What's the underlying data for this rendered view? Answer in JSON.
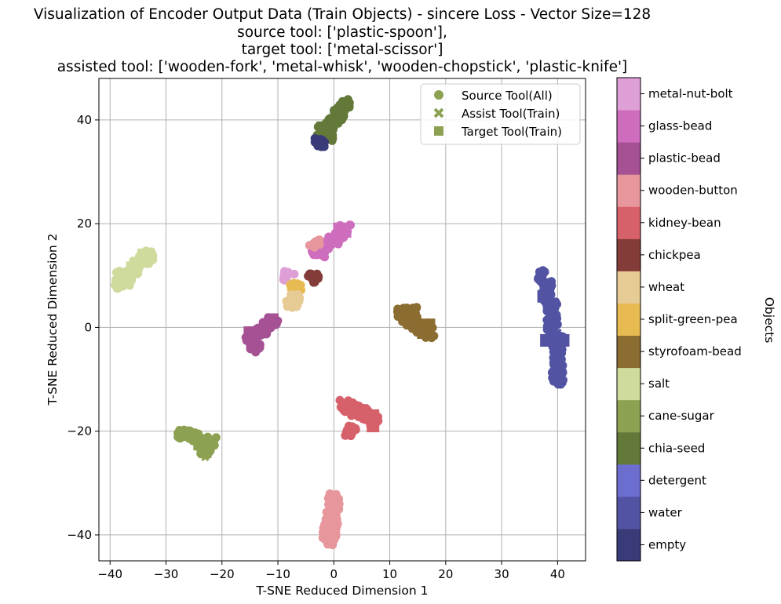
{
  "chart_data": {
    "type": "scatter",
    "title_lines": [
      "Visualization of Encoder Output Data (Train Objects) - sincere Loss - Vector Size=128",
      "source tool: ['plastic-spoon'],",
      "target tool: ['metal-scissor']",
      "assisted tool: ['wooden-fork', 'metal-whisk', 'wooden-chopstick', 'plastic-knife']"
    ],
    "xlabel": "T-SNE Reduced Dimension 1",
    "ylabel": "T-SNE Reduced Dimension 2",
    "xlim": [
      -42,
      45
    ],
    "ylim": [
      -45,
      48
    ],
    "xticks": [
      -40,
      -30,
      -20,
      -10,
      0,
      10,
      20,
      30,
      40
    ],
    "yticks": [
      -40,
      -20,
      0,
      20,
      40
    ],
    "grid": true,
    "legend_position": "top-right",
    "legend": [
      {
        "label": "Source Tool(All)",
        "marker": "circle"
      },
      {
        "label": "Assist Tool(Train)",
        "marker": "x"
      },
      {
        "label": "Target Tool(Train)",
        "marker": "square"
      }
    ],
    "legend_marker_color": "#8ca252",
    "colorbar": {
      "label": "Objects",
      "categories": [
        "empty",
        "water",
        "detergent",
        "chia-seed",
        "cane-sugar",
        "salt",
        "styrofoam-bead",
        "split-green-pea",
        "wheat",
        "chickpea",
        "kidney-bean",
        "wooden-button",
        "plastic-bead",
        "glass-bead",
        "metal-nut-bolt"
      ],
      "colors": [
        "#393b79",
        "#5254a3",
        "#6b6ecf",
        "#637939",
        "#8ca252",
        "#cedb9c",
        "#8c6d31",
        "#e7ba52",
        "#e7cb94",
        "#843c39",
        "#d6616b",
        "#e7969c",
        "#a55194",
        "#ce6dbd",
        "#de9ed6"
      ]
    },
    "clusters": [
      {
        "object": "chia-seed",
        "points": [
          [
            -2,
            38
          ],
          [
            -1,
            39
          ],
          [
            0,
            40
          ],
          [
            1,
            42
          ],
          [
            2,
            43
          ],
          [
            -1,
            37
          ],
          [
            1,
            41
          ]
        ],
        "target": [
          [
            -2,
            38.5
          ]
        ],
        "assist": [
          [
            -1,
            37
          ],
          [
            1,
            40
          ],
          [
            2,
            43
          ]
        ]
      },
      {
        "object": "empty",
        "points": [
          [
            -2.5,
            35.5
          ]
        ],
        "target": [],
        "assist": [
          [
            -2.5,
            35.5
          ]
        ]
      },
      {
        "object": "glass-bead",
        "points": [
          [
            -3,
            15
          ],
          [
            -2,
            15.5
          ],
          [
            -1,
            16
          ],
          [
            0,
            17
          ],
          [
            1,
            18
          ],
          [
            2,
            19
          ],
          [
            -2.5,
            14.5
          ]
        ],
        "target": [
          [
            1,
            19
          ],
          [
            2,
            18.5
          ]
        ],
        "assist": [
          [
            -3,
            15
          ],
          [
            -1,
            16
          ]
        ]
      },
      {
        "object": "wooden-button",
        "points": [
          [
            -3.5,
            16.3
          ]
        ],
        "target": [],
        "assist": [
          [
            -3.5,
            16.3
          ]
        ]
      },
      {
        "object": "metal-nut-bolt",
        "points": [
          [
            -8,
            10
          ]
        ],
        "target": [],
        "assist": []
      },
      {
        "object": "chickpea",
        "points": [
          [
            -3.7,
            9.4
          ]
        ],
        "target": [],
        "assist": []
      },
      {
        "object": "split-green-pea",
        "points": [
          [
            -6.8,
            7.8
          ]
        ],
        "target": [],
        "assist": []
      },
      {
        "object": "wheat",
        "points": [
          [
            -7,
            5.5
          ],
          [
            -7.5,
            4.5
          ]
        ],
        "target": [],
        "assist": []
      },
      {
        "object": "salt",
        "points": [
          [
            -38,
            10
          ],
          [
            -36,
            11
          ],
          [
            -35,
            12
          ],
          [
            -34,
            13
          ],
          [
            -33,
            14
          ],
          [
            -37,
            9
          ],
          [
            -38.5,
            8.5
          ]
        ],
        "target": [
          [
            -38,
            10
          ],
          [
            -36,
            11.5
          ],
          [
            -34,
            14
          ]
        ],
        "assist": [
          [
            -33,
            13
          ],
          [
            -37,
            9
          ]
        ]
      },
      {
        "object": "plastic-bead",
        "points": [
          [
            -15,
            -2
          ],
          [
            -14,
            -3
          ],
          [
            -13,
            -1
          ],
          [
            -12,
            0
          ],
          [
            -11,
            1
          ],
          [
            -14,
            -4
          ]
        ],
        "target": [
          [
            -11,
            1.5
          ],
          [
            -15,
            -1
          ]
        ],
        "assist": [
          [
            -14,
            -4
          ],
          [
            -13,
            -1
          ]
        ]
      },
      {
        "object": "styrofoam-bead",
        "points": [
          [
            12,
            3
          ],
          [
            13,
            2
          ],
          [
            14,
            1
          ],
          [
            15,
            0
          ],
          [
            16,
            0
          ],
          [
            17,
            -1
          ],
          [
            14,
            3
          ]
        ],
        "target": [
          [
            16,
            0
          ],
          [
            17,
            0.5
          ],
          [
            16,
            -1
          ]
        ],
        "assist": [
          [
            12,
            3
          ],
          [
            14,
            3
          ]
        ]
      },
      {
        "object": "water",
        "points": [
          [
            37,
            10
          ],
          [
            38,
            8
          ],
          [
            38,
            6
          ],
          [
            39,
            4
          ],
          [
            39,
            2
          ],
          [
            39,
            0
          ],
          [
            40,
            -2
          ],
          [
            40,
            -4
          ],
          [
            40,
            -6
          ],
          [
            40,
            -8
          ],
          [
            40,
            -10
          ]
        ],
        "target": [
          [
            38.5,
            4.5
          ],
          [
            39,
            3
          ],
          [
            37.5,
            6
          ],
          [
            38,
            -2.5
          ],
          [
            41,
            -2.5
          ],
          [
            40,
            -7
          ],
          [
            40,
            -9
          ]
        ],
        "assist": [
          [
            37,
            10
          ],
          [
            38,
            8
          ],
          [
            39,
            1
          ],
          [
            40,
            -1
          ],
          [
            40,
            -5
          ],
          [
            40,
            -10
          ]
        ]
      },
      {
        "object": "kidney-bean",
        "points": [
          [
            2,
            -15
          ],
          [
            3,
            -15.5
          ],
          [
            4,
            -16
          ],
          [
            5,
            -16.5
          ],
          [
            6,
            -17
          ],
          [
            7,
            -18
          ],
          [
            3,
            -20
          ]
        ],
        "target": [
          [
            2,
            -15
          ],
          [
            5,
            -16
          ],
          [
            7,
            -17
          ],
          [
            7,
            -19
          ]
        ],
        "assist": [
          [
            3,
            -15
          ],
          [
            6,
            -17.5
          ],
          [
            3,
            -20
          ]
        ]
      },
      {
        "object": "cane-sugar",
        "points": [
          [
            -27,
            -20.5
          ],
          [
            -26,
            -20.5
          ],
          [
            -25,
            -21
          ],
          [
            -24,
            -22
          ],
          [
            -23,
            -23
          ],
          [
            -23,
            -24
          ],
          [
            -22,
            -22
          ]
        ],
        "target": [
          [
            -26.5,
            -20.5
          ],
          [
            -24,
            -22.5
          ],
          [
            -23,
            -24
          ]
        ],
        "assist": [
          [
            -25,
            -20.5
          ],
          [
            -23,
            -25
          ]
        ]
      },
      {
        "object": "wooden-button",
        "points": [
          [
            0,
            -33
          ],
          [
            0,
            -35
          ],
          [
            -0.5,
            -36
          ],
          [
            -0.5,
            -37
          ],
          [
            0,
            -38
          ],
          [
            -1,
            -39
          ],
          [
            -1,
            -40
          ],
          [
            -0.5,
            -41
          ]
        ],
        "target": [
          [
            -1,
            -38.5
          ],
          [
            0,
            -39
          ]
        ],
        "assist": [
          [
            0,
            -33
          ],
          [
            -1,
            -41
          ]
        ]
      }
    ]
  }
}
